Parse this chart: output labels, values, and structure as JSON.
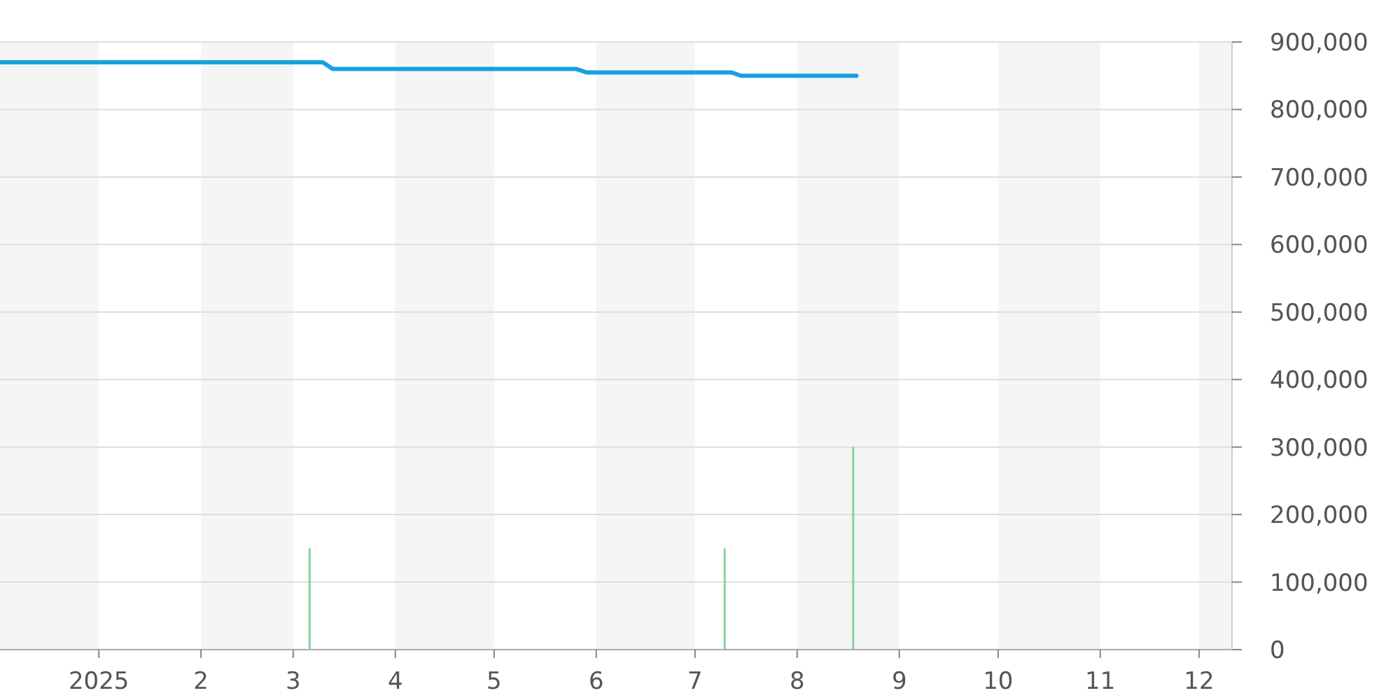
{
  "chart_data": {
    "type": "line",
    "xlim": [
      "2024-12-02",
      "2025-12-11"
    ],
    "ylim": [
      0,
      900000
    ],
    "xticks": [
      {
        "value": "2025-01-01",
        "label": "2025"
      },
      {
        "value": "2025-02-01",
        "label": "2"
      },
      {
        "value": "2025-03-01",
        "label": "3"
      },
      {
        "value": "2025-04-01",
        "label": "4"
      },
      {
        "value": "2025-05-01",
        "label": "5"
      },
      {
        "value": "2025-06-01",
        "label": "6"
      },
      {
        "value": "2025-07-01",
        "label": "7"
      },
      {
        "value": "2025-08-01",
        "label": "8"
      },
      {
        "value": "2025-09-01",
        "label": "9"
      },
      {
        "value": "2025-10-01",
        "label": "10"
      },
      {
        "value": "2025-11-01",
        "label": "11"
      },
      {
        "value": "2025-12-01",
        "label": "12"
      }
    ],
    "yticks": [
      0,
      {
        "value": 100000,
        "label": "100,000"
      },
      {
        "value": 200000,
        "label": "200,000"
      },
      {
        "value": 300000,
        "label": "300,000"
      },
      {
        "value": 400000,
        "label": "400,000"
      },
      {
        "value": 500000,
        "label": "500,000"
      },
      {
        "value": 600000,
        "label": "600,000"
      },
      {
        "value": 700000,
        "label": "700,000"
      },
      {
        "value": 800000,
        "label": "800,000"
      },
      {
        "value": 900000,
        "label": "900,000"
      }
    ],
    "grid": "y",
    "bands": [
      {
        "axis": "x",
        "from": "2024-12-02",
        "to": "2025-01-01",
        "color": "#f5f5f5"
      },
      {
        "axis": "x",
        "from": "2025-02-01",
        "to": "2025-03-01",
        "color": "#f5f5f5"
      },
      {
        "axis": "x",
        "from": "2025-04-01",
        "to": "2025-05-01",
        "color": "#f5f5f5"
      },
      {
        "axis": "x",
        "from": "2025-06-01",
        "to": "2025-07-01",
        "color": "#f5f5f5"
      },
      {
        "axis": "x",
        "from": "2025-08-01",
        "to": "2025-09-01",
        "color": "#f5f5f5"
      },
      {
        "axis": "x",
        "from": "2025-10-01",
        "to": "2025-11-01",
        "color": "#f5f5f5"
      },
      {
        "axis": "x",
        "from": "2025-12-01",
        "to": "2025-12-11",
        "color": "#f5f5f5"
      }
    ],
    "series": [
      {
        "type": "bar",
        "color": "#88d39a",
        "x": [
          "2025-03-06",
          "2025-07-10",
          "2025-08-18"
        ],
        "values": [
          150000,
          150000,
          300000
        ]
      },
      {
        "color": "#1a9fe0",
        "x": [
          "2024-12-02",
          "2025-03-10",
          "2025-03-13",
          "2025-05-26",
          "2025-05-29",
          "2025-07-12",
          "2025-07-15",
          "2025-08-19"
        ],
        "values": [
          870000,
          870000,
          860000,
          860000,
          855000,
          855000,
          850000,
          850000
        ]
      }
    ]
  }
}
